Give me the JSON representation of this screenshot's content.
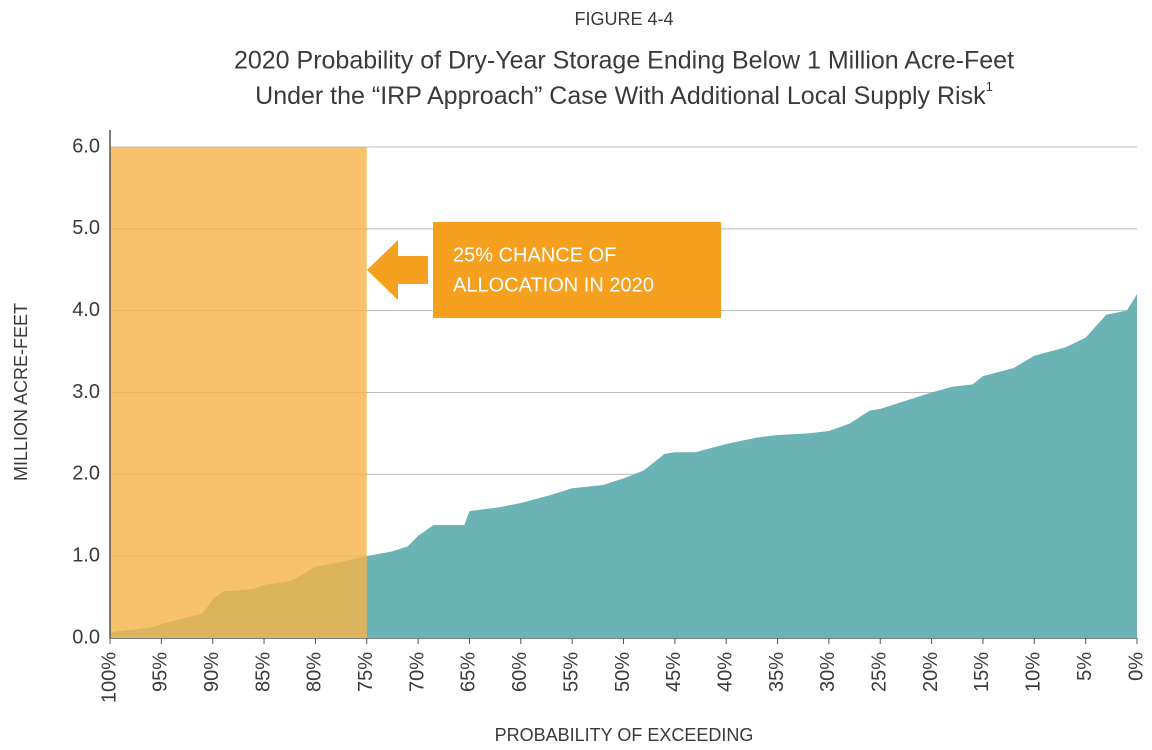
{
  "chart_data": {
    "type": "area",
    "supertitle": "FIGURE 4-4",
    "title": [
      "2020 Probability of Dry-Year Storage Ending Below 1 Million Acre-Feet",
      "Under the “IRP Approach” Case With Additional Local Supply Risk"
    ],
    "title_footnote_mark": "1",
    "xlabel": "PROBABILITY OF EXCEEDING",
    "ylabel": "MILLION ACRE-FEET",
    "color": "#6cb3b6",
    "x": [
      100,
      98,
      96,
      95,
      92.5,
      91,
      90,
      89,
      87.5,
      86,
      85,
      83,
      82,
      80,
      77.5,
      75,
      72.5,
      71,
      70,
      68.5,
      65.5,
      65,
      62,
      60,
      58.5,
      57,
      55,
      52,
      50,
      48,
      46,
      45,
      43,
      40,
      37,
      35,
      32,
      30,
      28,
      26,
      25,
      22,
      20,
      18,
      16,
      15,
      12,
      10,
      7,
      5,
      3,
      1,
      0
    ],
    "values": [
      0.07,
      0.1,
      0.13,
      0.17,
      0.25,
      0.3,
      0.47,
      0.57,
      0.58,
      0.6,
      0.65,
      0.68,
      0.72,
      0.87,
      0.93,
      1.0,
      1.06,
      1.12,
      1.25,
      1.38,
      1.38,
      1.55,
      1.6,
      1.65,
      1.7,
      1.75,
      1.83,
      1.87,
      1.95,
      2.05,
      2.25,
      2.27,
      2.27,
      2.37,
      2.45,
      2.48,
      2.5,
      2.53,
      2.62,
      2.78,
      2.8,
      2.92,
      3.0,
      3.07,
      3.1,
      3.2,
      3.3,
      3.45,
      3.55,
      3.67,
      3.95,
      4.0,
      4.2
    ],
    "xlim": [
      100,
      0
    ],
    "ylim": [
      0,
      6
    ],
    "xticks": [
      {
        "value": 100,
        "label": "100%"
      },
      {
        "value": 95,
        "label": "95%"
      },
      {
        "value": 90,
        "label": "90%"
      },
      {
        "value": 85,
        "label": "85%"
      },
      {
        "value": 80,
        "label": "80%"
      },
      {
        "value": 75,
        "label": "75%"
      },
      {
        "value": 70,
        "label": "70%"
      },
      {
        "value": 65,
        "label": "65%"
      },
      {
        "value": 60,
        "label": "60%"
      },
      {
        "value": 55,
        "label": "55%"
      },
      {
        "value": 50,
        "label": "50%"
      },
      {
        "value": 45,
        "label": "45%"
      },
      {
        "value": 40,
        "label": "40%"
      },
      {
        "value": 35,
        "label": "35%"
      },
      {
        "value": 30,
        "label": "30%"
      },
      {
        "value": 25,
        "label": "25%"
      },
      {
        "value": 20,
        "label": "20%"
      },
      {
        "value": 15,
        "label": "15%"
      },
      {
        "value": 10,
        "label": "10%"
      },
      {
        "value": 5,
        "label": "5%"
      },
      {
        "value": 0,
        "label": "0%"
      }
    ],
    "yticks": [
      {
        "value": 0,
        "label": "0.0"
      },
      {
        "value": 1,
        "label": "1.0"
      },
      {
        "value": 2,
        "label": "2.0"
      },
      {
        "value": 3,
        "label": "3.0"
      },
      {
        "value": 4,
        "label": "4.0"
      },
      {
        "value": 5,
        "label": "5.0"
      },
      {
        "value": 6,
        "label": "6.0"
      }
    ],
    "grid": true,
    "highlight": {
      "x": [
        100,
        75
      ],
      "color": "#f5b54a"
    },
    "annotation": {
      "text": [
        "25% CHANCE OF",
        "ALLOCATION IN 2020"
      ],
      "color": "#f5a01e"
    }
  }
}
